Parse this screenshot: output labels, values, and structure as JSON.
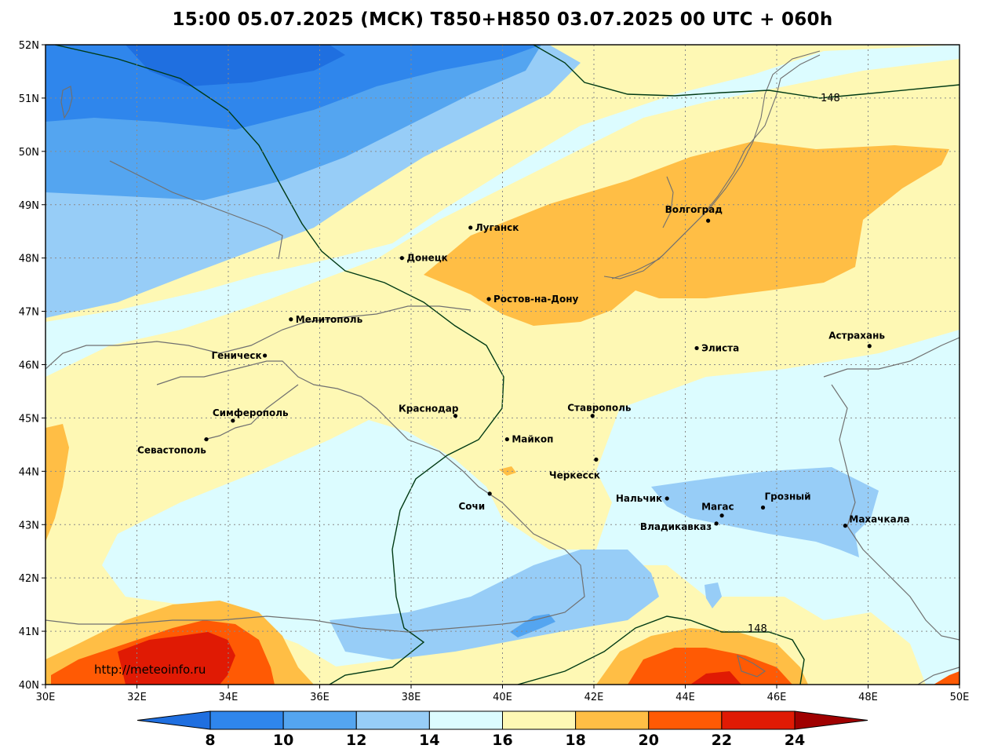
{
  "title": "15:00 05.07.2025 (МСК) T850+H850 03.07.2025 00 UTC + 060h",
  "watermark": "http://meteoinfo.ru",
  "lat_labels": [
    "52N",
    "51N",
    "50N",
    "49N",
    "48N",
    "47N",
    "46N",
    "45N",
    "44N",
    "43N",
    "42N",
    "41N",
    "40N"
  ],
  "lon_labels": [
    "30E",
    "32E",
    "34E",
    "36E",
    "38E",
    "40E",
    "42E",
    "44E",
    "46E",
    "48E",
    "50E"
  ],
  "extent": {
    "lon_min": 30,
    "lon_max": 50,
    "lat_min": 40,
    "lat_max": 52
  },
  "colorbar": {
    "labels": [
      "8",
      "10",
      "12",
      "14",
      "16",
      "18",
      "20",
      "22",
      "24"
    ],
    "colors": [
      "#1f6fe0",
      "#2f86ec",
      "#54a5f0",
      "#97cdf7",
      "#dcfcff",
      "#fef8b4",
      "#ffbe45",
      "#ff5a04",
      "#e01a04",
      "#a00000"
    ]
  },
  "contour_labels": [
    "148",
    "148"
  ],
  "cities": [
    {
      "name": "Волгоград",
      "lon": 44.5,
      "lat": 48.7
    },
    {
      "name": "Луганск",
      "lon": 39.3,
      "lat": 48.57
    },
    {
      "name": "Донецк",
      "lon": 37.8,
      "lat": 48.0
    },
    {
      "name": "Ростов-на-Дону",
      "lon": 39.7,
      "lat": 47.23
    },
    {
      "name": "Мелитополь",
      "lon": 35.37,
      "lat": 46.85
    },
    {
      "name": "Элиста",
      "lon": 44.25,
      "lat": 46.31
    },
    {
      "name": "Астрахань",
      "lon": 48.03,
      "lat": 46.35
    },
    {
      "name": "Геническ",
      "lon": 34.8,
      "lat": 46.17
    },
    {
      "name": "Симферополь",
      "lon": 34.1,
      "lat": 44.95
    },
    {
      "name": "Краснодар",
      "lon": 38.97,
      "lat": 45.04
    },
    {
      "name": "Ставрополь",
      "lon": 41.97,
      "lat": 45.04
    },
    {
      "name": "Майкоп",
      "lon": 40.1,
      "lat": 44.6
    },
    {
      "name": "Севастополь",
      "lon": 33.52,
      "lat": 44.6
    },
    {
      "name": "Черкесск",
      "lon": 42.05,
      "lat": 44.22
    },
    {
      "name": "Нальчик",
      "lon": 43.6,
      "lat": 43.49
    },
    {
      "name": "Грозный",
      "lon": 45.7,
      "lat": 43.32
    },
    {
      "name": "Магас",
      "lon": 44.8,
      "lat": 43.17
    },
    {
      "name": "Сочи",
      "lon": 39.72,
      "lat": 43.58
    },
    {
      "name": "Владикавказ",
      "lon": 44.68,
      "lat": 43.02
    },
    {
      "name": "Махачкала",
      "lon": 47.5,
      "lat": 42.98
    }
  ]
}
